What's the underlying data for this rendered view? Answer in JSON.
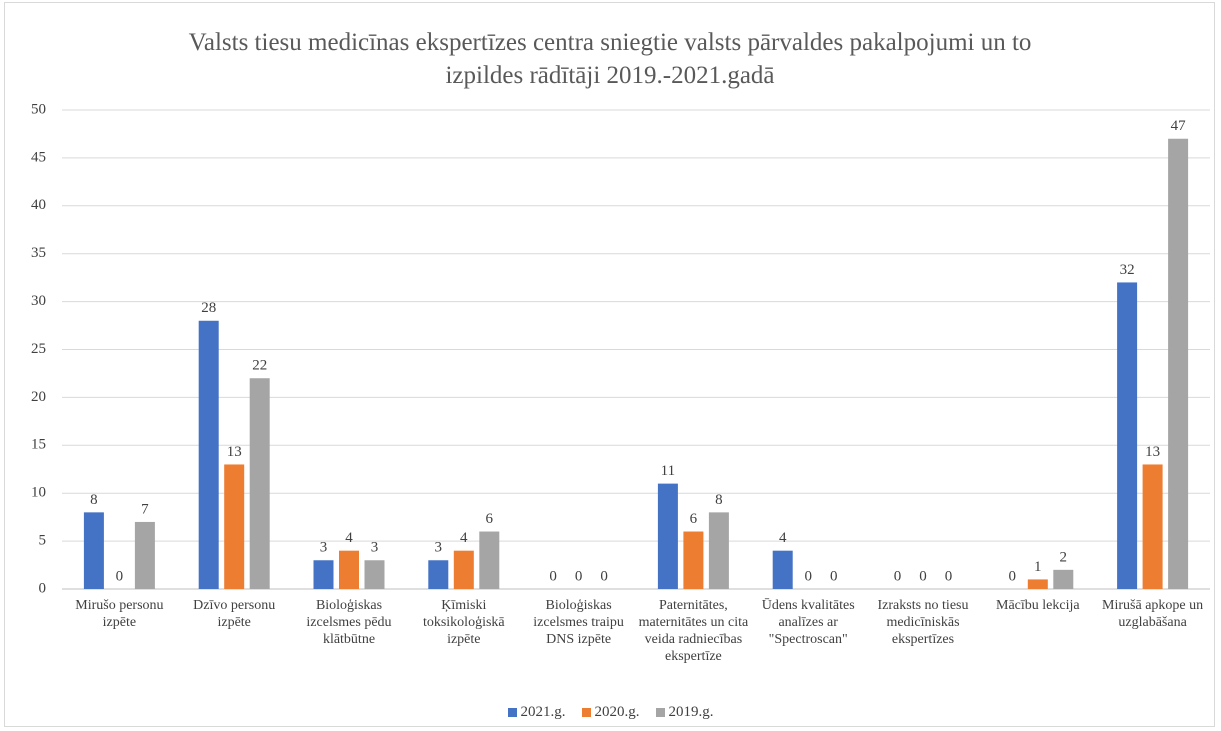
{
  "chart_data": {
    "type": "bar",
    "title": "Valsts tiesu medicīnas ekspertīzes centra sniegtie valsts pārvaldes pakalpojumi un to izpildes rādītāji 2019.-2021.gadā",
    "categories": [
      "Mirušo personu izpēte",
      "Dzīvo personu izpēte",
      "Bioloģiskas izcelsmes pēdu klātbūtne",
      "Ķīmiski toksikoloģiskā izpēte",
      "Bioloģiskas izcelsmes traipu DNS izpēte",
      "Paternitātes, maternitātes un cita veida radniecības ekspertīze",
      "Ūdens kvalitātes analīzes ar \"Spectroscan\"",
      "Izraksts no tiesu medicīniskās ekspertīzes",
      "Mācību lekcija",
      "Mirušā apkope un uzglabāšana"
    ],
    "series": [
      {
        "name": "2021.g.",
        "color": "#4472c4",
        "values": [
          8,
          28,
          3,
          3,
          0,
          11,
          4,
          0,
          0,
          32
        ]
      },
      {
        "name": "2020.g.",
        "color": "#ed7d31",
        "values": [
          0,
          13,
          4,
          4,
          0,
          6,
          0,
          0,
          1,
          13
        ]
      },
      {
        "name": "2019.g.",
        "color": "#a5a5a5",
        "values": [
          7,
          22,
          3,
          6,
          0,
          8,
          0,
          0,
          2,
          47
        ]
      }
    ],
    "ylim": [
      0,
      50
    ],
    "yticks": [
      0,
      5,
      10,
      15,
      20,
      25,
      30,
      35,
      40,
      45,
      50
    ],
    "grid": true,
    "legend": "bottom"
  }
}
